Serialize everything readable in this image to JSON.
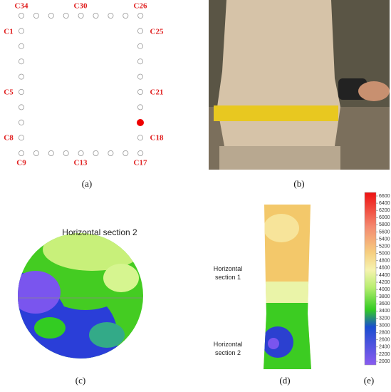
{
  "panel_a": {
    "labels": [
      "C34",
      "C30",
      "C26",
      "C1",
      "C25",
      "C5",
      "C21",
      "C8",
      "C18",
      "C9",
      "C13",
      "C17"
    ],
    "caption": "(a)"
  },
  "panel_b": {
    "caption": "(b)"
  },
  "panel_c": {
    "title": "Horizontal section 2",
    "caption": "(c)"
  },
  "panel_d": {
    "section_1": [
      "Horizontal",
      "section 1"
    ],
    "section_2": [
      "Horizontal",
      "section 2"
    ],
    "caption": "(d)"
  },
  "panel_e": {
    "ticks": [
      6600,
      6400,
      6200,
      6000,
      5800,
      5600,
      5400,
      5200,
      5000,
      4800,
      4600,
      4400,
      4200,
      4000,
      3800,
      3600,
      3400,
      3200,
      3000,
      2800,
      2600,
      2400,
      2200,
      2000
    ],
    "caption": "(e)"
  }
}
